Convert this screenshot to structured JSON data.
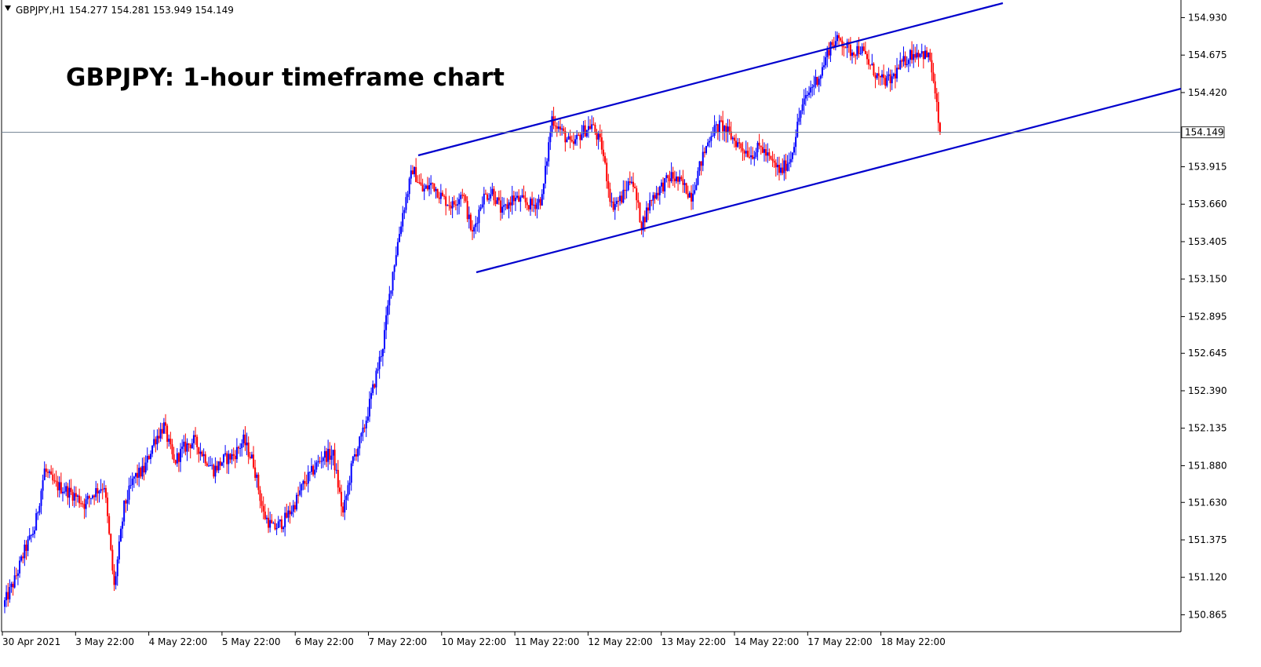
{
  "header": {
    "symbol_info": "GBPJPY,H1",
    "ohlc": "154.277 154.281 153.949 154.149"
  },
  "chart_data": {
    "type": "candlestick",
    "title": "GBPJPY: 1-hour timeframe chart",
    "symbol": "GBPJPY",
    "timeframe": "H1",
    "current_price": 154.149,
    "current_price_label": "154.149",
    "ylim": [
      150.75,
      155.05
    ],
    "y_ticks": [
      "154.930",
      "154.675",
      "154.420",
      "153.915",
      "153.660",
      "153.405",
      "153.150",
      "152.895",
      "152.645",
      "152.390",
      "152.135",
      "151.880",
      "151.630",
      "151.375",
      "151.120",
      "150.865"
    ],
    "x_ticks": [
      "30 Apr 2021",
      "3 May 22:00",
      "4 May 22:00",
      "5 May 22:00",
      "6 May 22:00",
      "7 May 22:00",
      "10 May 22:00",
      "11 May 22:00",
      "12 May 22:00",
      "13 May 22:00",
      "14 May 22:00",
      "17 May 22:00",
      "18 May 22:00"
    ],
    "up_color": "#0000ff",
    "down_color": "#ff0000",
    "channel_color": "#0000cd",
    "close_path": [
      [
        0,
        150.95
      ],
      [
        6,
        151.1
      ],
      [
        12,
        151.3
      ],
      [
        18,
        151.45
      ],
      [
        24,
        151.85
      ],
      [
        30,
        151.75
      ],
      [
        36,
        151.72
      ],
      [
        42,
        151.68
      ],
      [
        48,
        151.62
      ],
      [
        54,
        151.7
      ],
      [
        60,
        151.75
      ],
      [
        66,
        151.05
      ],
      [
        72,
        151.6
      ],
      [
        78,
        151.8
      ],
      [
        84,
        151.85
      ],
      [
        90,
        152.05
      ],
      [
        96,
        152.15
      ],
      [
        102,
        151.9
      ],
      [
        108,
        152.0
      ],
      [
        114,
        152.05
      ],
      [
        120,
        151.95
      ],
      [
        126,
        151.85
      ],
      [
        132,
        151.92
      ],
      [
        138,
        151.95
      ],
      [
        144,
        152.05
      ],
      [
        150,
        151.9
      ],
      [
        156,
        151.55
      ],
      [
        162,
        151.45
      ],
      [
        168,
        151.5
      ],
      [
        174,
        151.6
      ],
      [
        180,
        151.75
      ],
      [
        186,
        151.85
      ],
      [
        192,
        151.95
      ],
      [
        198,
        151.95
      ],
      [
        204,
        151.55
      ],
      [
        210,
        151.92
      ],
      [
        216,
        152.1
      ],
      [
        222,
        152.4
      ],
      [
        228,
        152.7
      ],
      [
        234,
        153.2
      ],
      [
        240,
        153.6
      ],
      [
        246,
        153.9
      ],
      [
        252,
        153.75
      ],
      [
        258,
        153.8
      ],
      [
        264,
        153.7
      ],
      [
        270,
        153.65
      ],
      [
        276,
        153.75
      ],
      [
        282,
        153.45
      ],
      [
        288,
        153.7
      ],
      [
        294,
        153.75
      ],
      [
        300,
        153.6
      ],
      [
        306,
        153.7
      ],
      [
        312,
        153.68
      ],
      [
        318,
        153.65
      ],
      [
        324,
        153.7
      ],
      [
        330,
        154.25
      ],
      [
        336,
        154.15
      ],
      [
        342,
        154.05
      ],
      [
        348,
        154.15
      ],
      [
        354,
        154.2
      ],
      [
        360,
        154.05
      ],
      [
        366,
        153.65
      ],
      [
        372,
        153.7
      ],
      [
        378,
        153.85
      ],
      [
        384,
        153.52
      ],
      [
        390,
        153.7
      ],
      [
        396,
        153.78
      ],
      [
        402,
        153.85
      ],
      [
        408,
        153.8
      ],
      [
        414,
        153.72
      ],
      [
        420,
        153.95
      ],
      [
        426,
        154.15
      ],
      [
        432,
        154.2
      ],
      [
        438,
        154.12
      ],
      [
        444,
        154.05
      ],
      [
        450,
        154.0
      ],
      [
        456,
        154.05
      ],
      [
        462,
        153.95
      ],
      [
        468,
        153.88
      ],
      [
        474,
        153.98
      ],
      [
        480,
        154.3
      ],
      [
        486,
        154.45
      ],
      [
        492,
        154.55
      ],
      [
        498,
        154.75
      ],
      [
        504,
        154.78
      ],
      [
        510,
        154.7
      ],
      [
        516,
        154.72
      ],
      [
        522,
        154.6
      ],
      [
        528,
        154.5
      ],
      [
        534,
        154.5
      ],
      [
        540,
        154.6
      ],
      [
        546,
        154.68
      ],
      [
        552,
        154.7
      ],
      [
        558,
        154.65
      ],
      [
        564,
        154.149
      ]
    ]
  }
}
